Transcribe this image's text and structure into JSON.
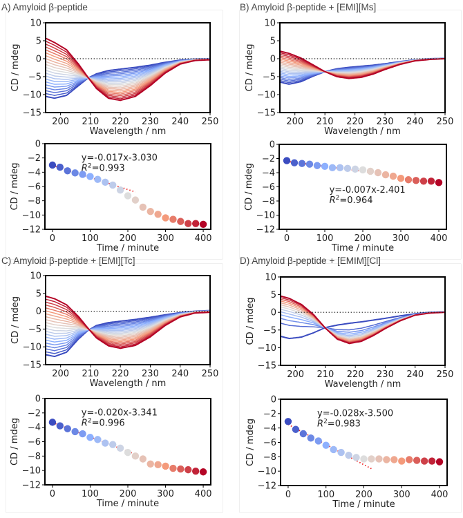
{
  "chart_data": [
    {
      "panel": "A",
      "title": "A) Amyloid β-peptide",
      "spectrum": {
        "type": "line",
        "xlabel": "Wavelength / nm",
        "ylabel": "CD / mdeg",
        "xlim": [
          195,
          250
        ],
        "ylim": [
          -15,
          10
        ],
        "xticks": [
          200,
          210,
          220,
          230,
          240,
          250
        ],
        "yticks": [
          10,
          5,
          0,
          -5,
          -10,
          -15
        ],
        "reference_line": {
          "y": 0,
          "x_from": 200,
          "x_to": 250,
          "style": "dotted"
        },
        "n_curves": 21,
        "colormap": "coolwarm (blue = early, red = late)",
        "first_curve": {
          "x": [
            195,
            198,
            202,
            206,
            209,
            212,
            216,
            220,
            225,
            230,
            235,
            240,
            245,
            250
          ],
          "y": [
            -10.5,
            -11.0,
            -10.2,
            -7.5,
            -5.5,
            -4.2,
            -3.3,
            -2.9,
            -2.4,
            -1.8,
            -1.0,
            -0.4,
            -0.1,
            0.0
          ]
        },
        "last_curve": {
          "x": [
            195,
            198,
            202,
            206,
            209,
            212,
            216,
            220,
            225,
            230,
            235,
            240,
            245,
            250
          ],
          "y": [
            5.7,
            4.5,
            2.5,
            -1.5,
            -5.0,
            -8.3,
            -11.0,
            -11.6,
            -10.5,
            -7.5,
            -4.0,
            -1.5,
            -0.5,
            -0.3
          ]
        }
      },
      "kinetics": {
        "type": "scatter",
        "xlabel": "Time / minute",
        "ylabel": "CD / mdeg",
        "xlim": [
          -20,
          420
        ],
        "ylim": [
          -12,
          0
        ],
        "xticks": [
          0,
          100,
          200,
          300,
          400
        ],
        "yticks": [
          0,
          -2,
          -4,
          -6,
          -8,
          -10,
          -12
        ],
        "x": [
          0,
          20,
          40,
          60,
          80,
          100,
          120,
          140,
          160,
          180,
          200,
          220,
          240,
          260,
          280,
          300,
          320,
          340,
          360,
          380,
          400
        ],
        "y": [
          -3.0,
          -3.3,
          -3.8,
          -4.1,
          -4.3,
          -4.6,
          -5.0,
          -5.4,
          -5.8,
          -6.5,
          -7.3,
          -7.9,
          -8.9,
          -9.5,
          -9.9,
          -10.4,
          -10.6,
          -10.9,
          -11.2,
          -11.2,
          -11.3
        ],
        "fit": {
          "slope": -0.017,
          "intercept": -3.03,
          "x_range": [
            0,
            220
          ]
        },
        "equation": "y=-0.017x-3.030",
        "r2_label": "=0.993",
        "annotation_position": "top-left"
      }
    },
    {
      "panel": "B",
      "title": "B) Amyloid β-peptide + [EMI][Ms]",
      "spectrum": {
        "type": "line",
        "xlabel": "Wavelength / nm",
        "ylabel": "CD / mdeg",
        "xlim": [
          195,
          250
        ],
        "ylim": [
          -15,
          10
        ],
        "xticks": [
          200,
          210,
          220,
          230,
          240,
          250
        ],
        "yticks": [
          10,
          5,
          0,
          -5,
          -10,
          -15
        ],
        "reference_line": {
          "y": 0,
          "x_from": 200,
          "x_to": 250,
          "style": "dotted"
        },
        "n_curves": 21,
        "colormap": "coolwarm (blue = early, red = late)",
        "first_curve": {
          "x": [
            195,
            198,
            202,
            206,
            210,
            214,
            218,
            222,
            226,
            230,
            235,
            240,
            245,
            250
          ],
          "y": [
            -6.5,
            -7.1,
            -6.4,
            -4.9,
            -3.6,
            -2.8,
            -2.4,
            -2.1,
            -1.8,
            -1.4,
            -0.8,
            -0.3,
            0.0,
            0.1
          ]
        },
        "last_curve": {
          "x": [
            195,
            198,
            202,
            206,
            210,
            214,
            218,
            222,
            226,
            230,
            235,
            240,
            245,
            250
          ],
          "y": [
            2.1,
            1.5,
            0.2,
            -1.7,
            -3.6,
            -5.0,
            -5.5,
            -5.2,
            -4.3,
            -3.0,
            -1.6,
            -0.6,
            -0.2,
            0.0
          ]
        }
      },
      "kinetics": {
        "type": "scatter",
        "xlabel": "Time / minute",
        "ylabel": "CD / mdeg",
        "xlim": [
          -20,
          420
        ],
        "ylim": [
          -12,
          0
        ],
        "xticks": [
          0,
          100,
          200,
          300,
          400
        ],
        "yticks": [
          0,
          -2,
          -4,
          -6,
          -8,
          -10,
          -12
        ],
        "x": [
          0,
          20,
          40,
          60,
          80,
          100,
          120,
          140,
          160,
          180,
          200,
          220,
          240,
          260,
          280,
          300,
          320,
          340,
          360,
          380,
          400
        ],
        "y": [
          -2.3,
          -2.6,
          -2.7,
          -2.8,
          -3.0,
          -3.1,
          -3.3,
          -3.3,
          -3.4,
          -3.5,
          -3.6,
          -3.8,
          -4.0,
          -4.3,
          -4.5,
          -4.8,
          -5.0,
          -5.1,
          -5.2,
          -5.2,
          -5.4
        ],
        "fit": {
          "slope": -0.007,
          "intercept": -2.401,
          "x_range": [
            0,
            220
          ]
        },
        "equation": "y=-0.007x-2.401",
        "r2_label": "=0.964",
        "annotation_position": "middle-left"
      }
    },
    {
      "panel": "C",
      "title": "C) Amyloid β-peptide  + [EMI][Tc]",
      "spectrum": {
        "type": "line",
        "xlabel": "Wavelength / nm",
        "ylabel": "CD / mdeg",
        "xlim": [
          195,
          250
        ],
        "ylim": [
          -15,
          10
        ],
        "xticks": [
          200,
          210,
          220,
          230,
          240,
          250
        ],
        "yticks": [
          10,
          5,
          0,
          -5,
          -10,
          -15
        ],
        "reference_line": {
          "y": 0,
          "x_from": 200,
          "x_to": 250,
          "style": "dotted"
        },
        "n_curves": 21,
        "colormap": "coolwarm (blue = early, red = late)",
        "first_curve": {
          "x": [
            195,
            198,
            202,
            206,
            209,
            212,
            216,
            220,
            225,
            230,
            235,
            240,
            245,
            250
          ],
          "y": [
            -12.2,
            -12.7,
            -11.5,
            -7.8,
            -5.5,
            -4.0,
            -3.2,
            -2.8,
            -2.3,
            -1.7,
            -1.0,
            -0.4,
            0.0,
            0.2
          ]
        },
        "last_curve": {
          "x": [
            195,
            198,
            202,
            206,
            209,
            212,
            216,
            220,
            225,
            230,
            235,
            240,
            245,
            250
          ],
          "y": [
            4.2,
            3.5,
            1.8,
            -1.5,
            -4.6,
            -7.5,
            -9.7,
            -10.4,
            -9.6,
            -7.2,
            -4.0,
            -1.6,
            -0.5,
            -0.3
          ]
        }
      },
      "kinetics": {
        "type": "scatter",
        "xlabel": "Time / minute",
        "ylabel": "CD / mdeg",
        "xlim": [
          -20,
          420
        ],
        "ylim": [
          -12,
          0
        ],
        "xticks": [
          0,
          100,
          200,
          300,
          400
        ],
        "yticks": [
          0,
          -2,
          -4,
          -6,
          -8,
          -10,
          -12
        ],
        "x": [
          0,
          20,
          40,
          60,
          80,
          100,
          120,
          140,
          160,
          180,
          200,
          220,
          240,
          260,
          280,
          300,
          320,
          340,
          360,
          380,
          400
        ],
        "y": [
          -3.3,
          -3.8,
          -4.2,
          -4.6,
          -4.9,
          -5.4,
          -5.7,
          -6.2,
          -6.4,
          -6.9,
          -7.5,
          -8.0,
          -8.4,
          -9.1,
          -9.2,
          -9.4,
          -9.7,
          -9.8,
          -9.9,
          -10.1,
          -10.2
        ],
        "fit": {
          "slope": -0.02,
          "intercept": -3.341,
          "x_range": [
            0,
            220
          ]
        },
        "equation": "y=-0.020x-3.341",
        "r2_label": "=0.996",
        "annotation_position": "top-left"
      }
    },
    {
      "panel": "D",
      "title": "D) Amyloid β-peptide + [EMIM][Cl]",
      "spectrum": {
        "type": "line",
        "xlabel": "Wavelength / nm",
        "ylabel": "CD / mdeg",
        "xlim": [
          195,
          250
        ],
        "ylim": [
          -15,
          10
        ],
        "xticks": [
          200,
          210,
          220,
          230,
          240,
          250
        ],
        "yticks": [
          10,
          5,
          0,
          -5,
          -10,
          -15
        ],
        "reference_line": {
          "y": 0,
          "x_from": 200,
          "x_to": 250,
          "style": "dotted"
        },
        "n_curves": 13,
        "colormap": "coolwarm (blue = early, red = late)",
        "first_curve": {
          "x": [
            195,
            198,
            202,
            206,
            210,
            214,
            218,
            222,
            226,
            230,
            235,
            240,
            245,
            250
          ],
          "y": [
            -6.8,
            -7.4,
            -7.0,
            -5.8,
            -4.3,
            -3.6,
            -3.1,
            -2.7,
            -2.2,
            -1.7,
            -1.0,
            -0.4,
            0.0,
            0.1
          ]
        },
        "last_curve": {
          "x": [
            195,
            198,
            202,
            206,
            210,
            214,
            218,
            222,
            226,
            230,
            235,
            240,
            245,
            250
          ],
          "y": [
            4.6,
            3.9,
            2.2,
            -0.6,
            -4.5,
            -7.6,
            -8.8,
            -8.2,
            -6.6,
            -4.6,
            -2.4,
            -0.8,
            -0.2,
            0.0
          ]
        }
      },
      "kinetics": {
        "type": "scatter",
        "xlabel": "Time / minute",
        "ylabel": "CD / mdeg",
        "xlim": [
          -20,
          420
        ],
        "ylim": [
          -12,
          0
        ],
        "xticks": [
          0,
          100,
          200,
          300,
          400
        ],
        "yticks": [
          0,
          -2,
          -4,
          -6,
          -8,
          -10,
          -12
        ],
        "x": [
          0,
          20,
          40,
          60,
          80,
          100,
          120,
          140,
          160,
          180,
          200,
          220,
          240,
          260,
          280,
          300,
          320,
          340,
          360,
          380,
          400
        ],
        "y": [
          -3.1,
          -4.2,
          -4.8,
          -5.4,
          -5.8,
          -6.4,
          -7.0,
          -7.4,
          -7.8,
          -8.1,
          -8.3,
          -8.3,
          -8.3,
          -8.4,
          -8.4,
          -8.6,
          -8.4,
          -8.5,
          -8.6,
          -8.6,
          -8.7
        ],
        "fit": {
          "slope": -0.028,
          "intercept": -3.5,
          "x_range": [
            0,
            220
          ]
        },
        "equation": "y=-0.028x-3.500",
        "r2_label": "=0.983",
        "annotation_position": "top-left"
      }
    }
  ],
  "colors": {
    "cmap_low": "#3b4cc0",
    "cmap_mid": "#dddddd",
    "cmap_high": "#b40426",
    "fit_line": "#ee2222",
    "reference_line": "#222222",
    "axis": "#000000"
  }
}
